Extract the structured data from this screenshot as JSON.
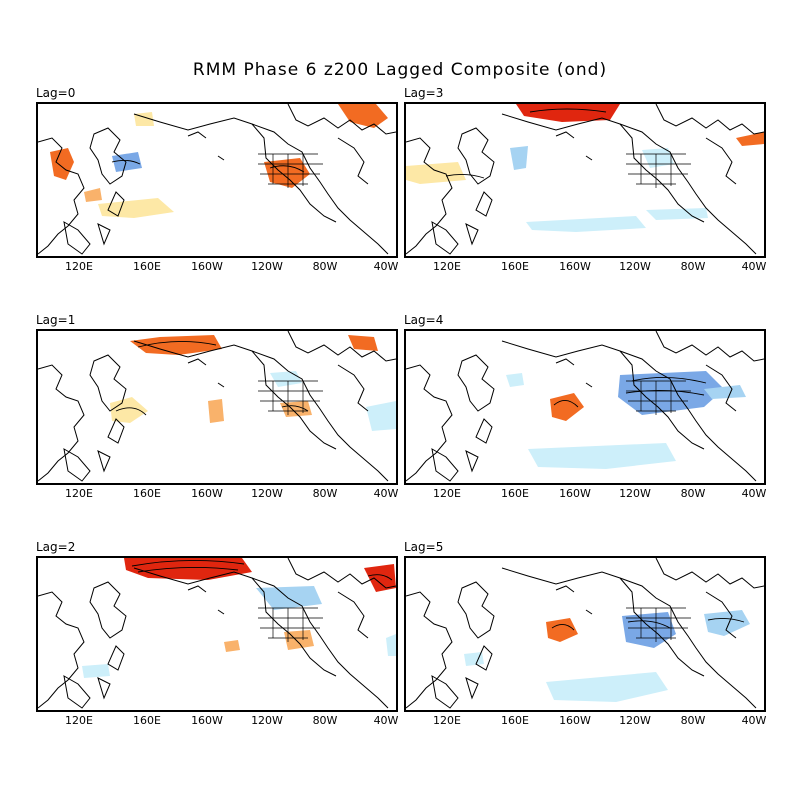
{
  "title": "RMM Phase 6 z200 Lagged Composite (ond)",
  "lon_ticks": [
    "120E",
    "160E",
    "160W",
    "120W",
    "80W",
    "40W"
  ],
  "colors": {
    "positive_light": "#fde8a6",
    "positive_mid": "#f9b26b",
    "positive_strong": "#f26b22",
    "positive_max": "#e0260f",
    "negative_light": "#cdeffa",
    "negative_mid": "#a6d3f2",
    "negative_strong": "#7aa8e6",
    "land_outline": "#000000"
  },
  "panels": [
    {
      "label": "Lag=0"
    },
    {
      "label": "Lag=3"
    },
    {
      "label": "Lag=1"
    },
    {
      "label": "Lag=4"
    },
    {
      "label": "Lag=2"
    },
    {
      "label": "Lag=5"
    }
  ]
}
